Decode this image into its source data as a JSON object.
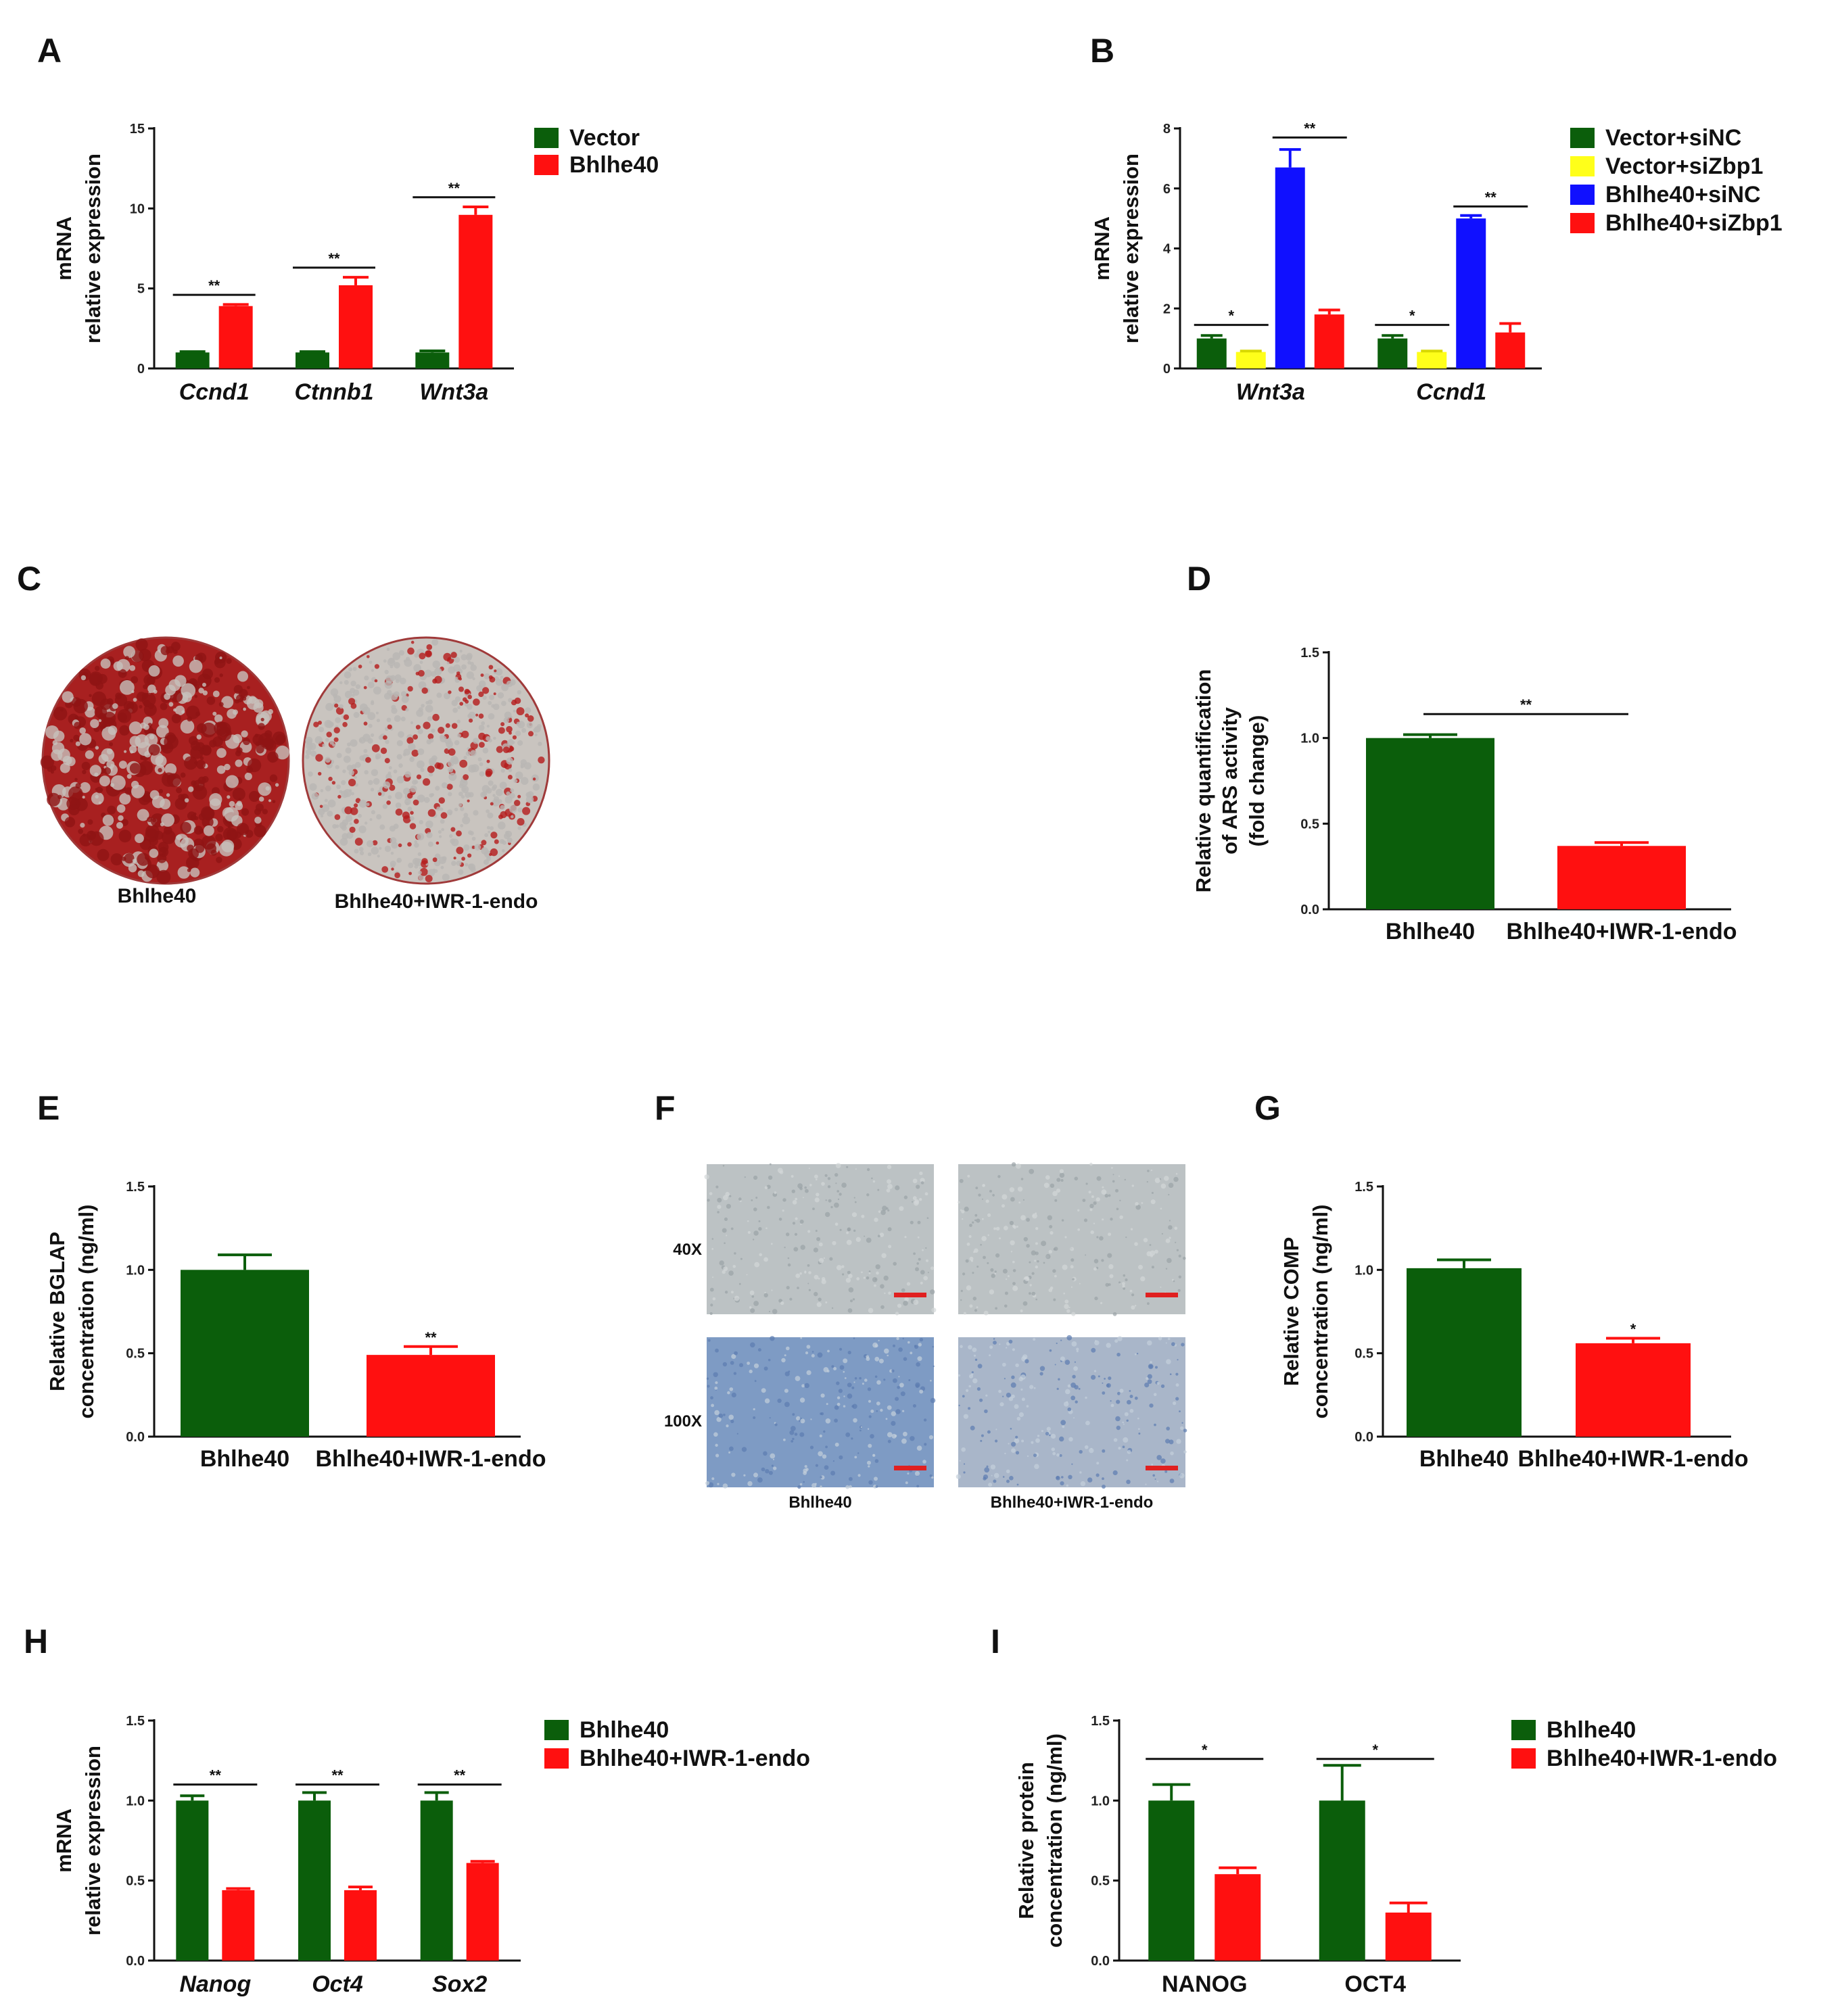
{
  "colors": {
    "green": "#0b5e0b",
    "red": "#ff1010",
    "yellow": "#ffff1a",
    "blue": "#1010ff",
    "plate_stain": "#b51b1b",
    "plate_bg": "#c9c4bf",
    "micro_light": "#bcc2c4",
    "micro_blue": "#7e9bc4"
  },
  "panels": {
    "A": {
      "letter": "A"
    },
    "B": {
      "letter": "B"
    },
    "C": {
      "letter": "C",
      "labels": [
        "Bhlhe40",
        "Bhlhe40+IWR-1-endo"
      ],
      "stain_density": [
        0.85,
        0.3
      ]
    },
    "D": {
      "letter": "D"
    },
    "E": {
      "letter": "E"
    },
    "F": {
      "letter": "F",
      "row_labels": [
        "40X",
        "100X"
      ],
      "col_labels": [
        "Bhlhe40",
        "Bhlhe40+IWR-1-endo"
      ]
    },
    "G": {
      "letter": "G"
    },
    "H": {
      "letter": "H"
    },
    "I": {
      "letter": "I"
    }
  },
  "chart_data": [
    {
      "id": "A",
      "type": "bar",
      "ylabel": [
        "mRNA",
        "relative expression"
      ],
      "ylim": [
        0,
        15
      ],
      "yticks": [
        "0",
        "5",
        "10",
        "15"
      ],
      "categories": [
        "Ccnd1",
        "Ctnnb1",
        "Wnt3a"
      ],
      "italic_categories": true,
      "series": [
        {
          "name": "Vector",
          "color": "#0b5e0b",
          "values": [
            1.0,
            1.0,
            1.0
          ],
          "errors": [
            0.05,
            0.05,
            0.1
          ]
        },
        {
          "name": "Bhlhe40",
          "color": "#ff1010",
          "values": [
            3.9,
            5.2,
            9.6
          ],
          "errors": [
            0.1,
            0.5,
            0.5
          ]
        }
      ],
      "significance": [
        {
          "label": "**",
          "from": [
            0,
            0
          ],
          "to": [
            0,
            1
          ],
          "y": 4.6
        },
        {
          "label": "**",
          "from": [
            1,
            0
          ],
          "to": [
            1,
            1
          ],
          "y": 6.3
        },
        {
          "label": "**",
          "from": [
            2,
            0
          ],
          "to": [
            2,
            1
          ],
          "y": 10.7
        }
      ],
      "legend_position": "top-right"
    },
    {
      "id": "B",
      "type": "bar",
      "ylabel": [
        "mRNA",
        "relative expression"
      ],
      "ylim": [
        0,
        8
      ],
      "yticks": [
        "0",
        "2",
        "4",
        "6",
        "8"
      ],
      "categories": [
        "Wnt3a",
        "Ccnd1"
      ],
      "italic_categories": true,
      "series": [
        {
          "name": "Vector+siNC",
          "color": "#0b5e0b",
          "values": [
            1.0,
            1.0
          ],
          "errors": [
            0.1,
            0.1
          ]
        },
        {
          "name": "Vector+siZbp1",
          "color": "#ffff1a",
          "values": [
            0.55,
            0.55
          ],
          "errors": [
            0.03,
            0.03
          ]
        },
        {
          "name": "Bhlhe40+siNC",
          "color": "#1010ff",
          "values": [
            6.7,
            5.0
          ],
          "errors": [
            0.6,
            0.1
          ]
        },
        {
          "name": "Bhlhe40+siZbp1",
          "color": "#ff1010",
          "values": [
            1.8,
            1.2
          ],
          "errors": [
            0.15,
            0.3
          ]
        }
      ],
      "significance": [
        {
          "label": "*",
          "from": [
            0,
            0
          ],
          "to": [
            0,
            1
          ],
          "y": 1.45
        },
        {
          "label": "**",
          "from": [
            0,
            2
          ],
          "to": [
            0,
            3
          ],
          "y": 7.7
        },
        {
          "label": "*",
          "from": [
            1,
            0
          ],
          "to": [
            1,
            1
          ],
          "y": 1.45
        },
        {
          "label": "**",
          "from": [
            1,
            2
          ],
          "to": [
            1,
            3
          ],
          "y": 5.4
        }
      ],
      "legend_position": "top-right"
    },
    {
      "id": "D",
      "type": "bar",
      "ylabel": [
        "Relative quantification",
        "of ARS activity",
        "(fold change)"
      ],
      "ylim": [
        0,
        1.5
      ],
      "yticks": [
        "0.0",
        "0.5",
        "1.0",
        "1.5"
      ],
      "categories": [
        "Bhlhe40",
        "Bhlhe40+IWR-1-endo"
      ],
      "italic_categories": false,
      "series": [
        {
          "name": "ARS",
          "colors": [
            "#0b5e0b",
            "#ff1010"
          ],
          "values": [
            1.0,
            0.37
          ],
          "errors": [
            0.02,
            0.02
          ]
        }
      ],
      "significance": [
        {
          "label": "**",
          "from": [
            0,
            0
          ],
          "to": [
            1,
            0
          ],
          "y": 1.14
        }
      ],
      "legend_position": "none"
    },
    {
      "id": "E",
      "type": "bar",
      "ylabel": [
        "Relative BGLAP",
        "concentration (ng/ml)"
      ],
      "ylim": [
        0,
        1.5
      ],
      "yticks": [
        "0.0",
        "0.5",
        "1.0",
        "1.5"
      ],
      "categories": [
        "Bhlhe40",
        "Bhlhe40+IWR-1-endo"
      ],
      "italic_categories": false,
      "series": [
        {
          "name": "BGLAP",
          "colors": [
            "#0b5e0b",
            "#ff1010"
          ],
          "values": [
            1.0,
            0.49
          ],
          "errors": [
            0.09,
            0.05
          ]
        }
      ],
      "bar_annotations": [
        {
          "label": "**",
          "index": 1
        }
      ],
      "legend_position": "none"
    },
    {
      "id": "G",
      "type": "bar",
      "ylabel": [
        "Relative COMP",
        "concentration (ng/ml)"
      ],
      "ylim": [
        0,
        1.5
      ],
      "yticks": [
        "0.0",
        "0.5",
        "1.0",
        "1.5"
      ],
      "categories": [
        "Bhlhe40",
        "Bhlhe40+IWR-1-endo"
      ],
      "italic_categories": false,
      "series": [
        {
          "name": "COMP",
          "colors": [
            "#0b5e0b",
            "#ff1010"
          ],
          "values": [
            1.01,
            0.56
          ],
          "errors": [
            0.05,
            0.03
          ]
        }
      ],
      "bar_annotations": [
        {
          "label": "*",
          "index": 1
        }
      ],
      "legend_position": "none"
    },
    {
      "id": "H",
      "type": "bar",
      "ylabel": [
        "mRNA",
        "relative expression"
      ],
      "ylim": [
        0,
        1.5
      ],
      "yticks": [
        "0.0",
        "0.5",
        "1.0",
        "1.5"
      ],
      "categories": [
        "Nanog",
        "Oct4",
        "Sox2"
      ],
      "italic_categories": true,
      "series": [
        {
          "name": "Bhlhe40",
          "color": "#0b5e0b",
          "values": [
            1.0,
            1.0,
            1.0
          ],
          "errors": [
            0.03,
            0.05,
            0.05
          ]
        },
        {
          "name": "Bhlhe40+IWR-1-endo",
          "color": "#ff1010",
          "values": [
            0.44,
            0.44,
            0.61
          ],
          "errors": [
            0.01,
            0.02,
            0.01
          ]
        }
      ],
      "significance": [
        {
          "label": "**",
          "from": [
            0,
            0
          ],
          "to": [
            0,
            1
          ],
          "y": 1.1
        },
        {
          "label": "**",
          "from": [
            1,
            0
          ],
          "to": [
            1,
            1
          ],
          "y": 1.1
        },
        {
          "label": "**",
          "from": [
            2,
            0
          ],
          "to": [
            2,
            1
          ],
          "y": 1.1
        }
      ],
      "legend_position": "top-right"
    },
    {
      "id": "I",
      "type": "bar",
      "ylabel": [
        "Relative protein",
        "concentration (ng/ml)"
      ],
      "ylim": [
        0,
        1.5
      ],
      "yticks": [
        "0.0",
        "0.5",
        "1.0",
        "1.5"
      ],
      "categories": [
        "NANOG",
        "OCT4"
      ],
      "italic_categories": false,
      "series": [
        {
          "name": "Bhlhe40",
          "color": "#0b5e0b",
          "values": [
            1.0,
            1.0
          ],
          "errors": [
            0.1,
            0.22
          ]
        },
        {
          "name": "Bhlhe40+IWR-1-endo",
          "color": "#ff1010",
          "values": [
            0.54,
            0.3
          ],
          "errors": [
            0.04,
            0.06
          ]
        }
      ],
      "significance": [
        {
          "label": "*",
          "from": [
            0,
            0
          ],
          "to": [
            0,
            1
          ],
          "y": 1.26
        },
        {
          "label": "*",
          "from": [
            1,
            0
          ],
          "to": [
            1,
            1
          ],
          "y": 1.26
        }
      ],
      "legend_position": "top-right"
    }
  ]
}
